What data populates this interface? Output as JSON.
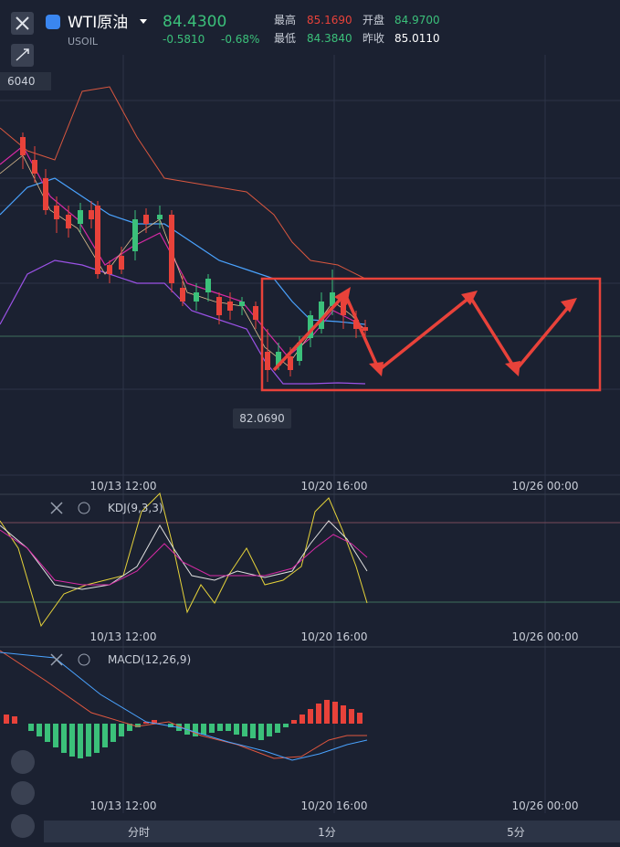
{
  "header": {
    "symbol": "WTI原油",
    "code": "USOIL",
    "price": "84.4300",
    "change": "-0.5810",
    "change_pct": "-0.68%",
    "stats": [
      {
        "label": "最高",
        "value": "85.1690"
      },
      {
        "label": "开盘",
        "value": "84.9700"
      },
      {
        "label": "最低",
        "value": "84.3840"
      },
      {
        "label": "昨收",
        "value": "85.0110"
      }
    ]
  },
  "main_chart": {
    "price_labels": [
      "6040",
      "82.0690"
    ],
    "x_labels": [
      "10/13 12:00",
      "10/20 16:00",
      "10/26 00:00"
    ]
  },
  "kdj": {
    "name": "KDJ(9,3,3)",
    "x_labels": [
      "10/13 12:00",
      "10/20 16:00",
      "10/26 00:00"
    ]
  },
  "macd": {
    "name": "MACD(12,26,9)",
    "x_labels": [
      "10/13 12:00",
      "10/20 16:00",
      "10/26 00:00"
    ]
  },
  "tabs": [
    "分时",
    "1分",
    "5分"
  ]
}
